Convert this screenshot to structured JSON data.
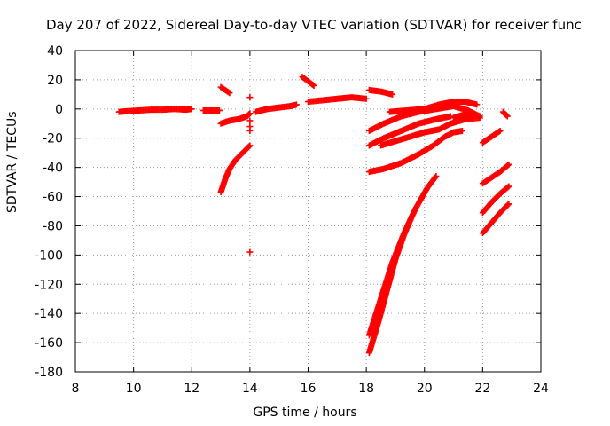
{
  "chart_data": {
    "type": "scatter",
    "title": "Day 207 of 2022, Sidereal Day-to-day VTEC variation (SDTVAR) for receiver func",
    "xlabel": "GPS time / hours",
    "ylabel": "SDTVAR / TECUs",
    "xlim": [
      8,
      24
    ],
    "ylim": [
      -180,
      40
    ],
    "xticks": [
      8,
      10,
      12,
      14,
      16,
      18,
      20,
      22,
      24
    ],
    "yticks": [
      40,
      20,
      0,
      -20,
      -40,
      -60,
      -80,
      -100,
      -120,
      -140,
      -160,
      -180
    ],
    "grid": true,
    "marker": "plus",
    "color": "#ff0000",
    "series": [
      {
        "points": [
          [
            9.5,
            -2
          ],
          [
            9.8,
            -1.5
          ],
          [
            10.2,
            -1
          ],
          [
            10.6,
            -0.5
          ],
          [
            11.0,
            -0.5
          ],
          [
            11.4,
            0
          ],
          [
            11.8,
            -0.5
          ],
          [
            12.0,
            0
          ]
        ]
      },
      {
        "points": [
          [
            12.4,
            -1
          ],
          [
            12.7,
            -1
          ],
          [
            12.95,
            -1
          ]
        ]
      },
      {
        "points": [
          [
            13.0,
            15
          ],
          [
            13.3,
            11
          ]
        ]
      },
      {
        "points": [
          [
            13.0,
            -10
          ],
          [
            13.3,
            -8
          ],
          [
            13.6,
            -7
          ],
          [
            13.9,
            -5
          ],
          [
            14.0,
            -3
          ]
        ]
      },
      {
        "points": [
          [
            13.0,
            -57
          ],
          [
            13.15,
            -48
          ],
          [
            13.3,
            -41
          ],
          [
            13.5,
            -35
          ],
          [
            13.7,
            -31
          ],
          [
            13.9,
            -27
          ],
          [
            14.0,
            -25
          ]
        ]
      },
      {
        "points": [
          [
            14.0,
            8
          ],
          [
            14.0,
            -8
          ],
          [
            14.0,
            -12
          ],
          [
            14.0,
            -15
          ],
          [
            14.0,
            -98
          ]
        ]
      },
      {
        "points": [
          [
            14.2,
            -2
          ],
          [
            14.6,
            0
          ],
          [
            15.0,
            1
          ],
          [
            15.4,
            2
          ],
          [
            15.6,
            3
          ]
        ]
      },
      {
        "points": [
          [
            15.8,
            22
          ],
          [
            16.0,
            19
          ],
          [
            16.2,
            16
          ]
        ]
      },
      {
        "points": [
          [
            16.0,
            5
          ],
          [
            16.5,
            6
          ],
          [
            17.0,
            7
          ],
          [
            17.5,
            8
          ],
          [
            18.0,
            7
          ]
        ]
      },
      {
        "points": [
          [
            18.1,
            13
          ],
          [
            18.5,
            12
          ],
          [
            18.9,
            10
          ]
        ]
      },
      {
        "points": [
          [
            18.8,
            -2
          ],
          [
            19.4,
            -1
          ],
          [
            20.0,
            0
          ],
          [
            20.5,
            3
          ],
          [
            21.0,
            5
          ],
          [
            21.4,
            5
          ],
          [
            21.8,
            3
          ]
        ]
      },
      {
        "points": [
          [
            18.1,
            -15
          ],
          [
            18.6,
            -10
          ],
          [
            19.2,
            -5
          ],
          [
            19.8,
            -2
          ],
          [
            20.4,
            0
          ],
          [
            21.0,
            2
          ],
          [
            21.5,
            -1
          ],
          [
            21.9,
            -5
          ]
        ]
      },
      {
        "points": [
          [
            18.1,
            -25
          ],
          [
            18.6,
            -20
          ],
          [
            19.2,
            -15
          ],
          [
            19.8,
            -10
          ],
          [
            20.4,
            -7
          ],
          [
            20.9,
            -5
          ]
        ]
      },
      {
        "points": [
          [
            18.5,
            -25
          ],
          [
            19.0,
            -22
          ],
          [
            19.5,
            -19
          ],
          [
            20.0,
            -16
          ],
          [
            20.5,
            -14
          ],
          [
            20.9,
            -10
          ],
          [
            21.4,
            -7
          ],
          [
            21.9,
            -6
          ]
        ]
      },
      {
        "points": [
          [
            18.1,
            -43
          ],
          [
            18.6,
            -41
          ],
          [
            19.2,
            -37
          ],
          [
            19.8,
            -31
          ],
          [
            20.3,
            -25
          ],
          [
            20.7,
            -19
          ],
          [
            21.0,
            -16
          ],
          [
            21.3,
            -15
          ]
        ]
      },
      {
        "points": [
          [
            18.1,
            -155
          ],
          [
            18.5,
            -130
          ],
          [
            18.9,
            -105
          ],
          [
            19.3,
            -85
          ],
          [
            19.7,
            -68
          ],
          [
            20.1,
            -54
          ],
          [
            20.4,
            -46
          ]
        ]
      },
      {
        "points": [
          [
            18.1,
            -167
          ],
          [
            18.4,
            -147
          ],
          [
            18.7,
            -125
          ],
          [
            19.0,
            -103
          ],
          [
            19.3,
            -86
          ],
          [
            19.6,
            -72
          ]
        ]
      },
      {
        "points": [
          [
            21.0,
            -6
          ],
          [
            21.5,
            -3
          ],
          [
            21.9,
            -5
          ]
        ]
      },
      {
        "points": [
          [
            22.0,
            -23
          ],
          [
            22.3,
            -19
          ],
          [
            22.6,
            -15
          ]
        ]
      },
      {
        "points": [
          [
            22.0,
            -51
          ],
          [
            22.3,
            -47
          ],
          [
            22.6,
            -43
          ],
          [
            22.9,
            -38
          ]
        ]
      },
      {
        "points": [
          [
            22.0,
            -71
          ],
          [
            22.3,
            -64
          ],
          [
            22.6,
            -58
          ],
          [
            22.9,
            -53
          ]
        ]
      },
      {
        "points": [
          [
            22.0,
            -85
          ],
          [
            22.3,
            -78
          ],
          [
            22.6,
            -71
          ],
          [
            22.9,
            -65
          ]
        ]
      },
      {
        "points": [
          [
            22.7,
            -2
          ],
          [
            22.85,
            -5
          ]
        ]
      }
    ]
  }
}
